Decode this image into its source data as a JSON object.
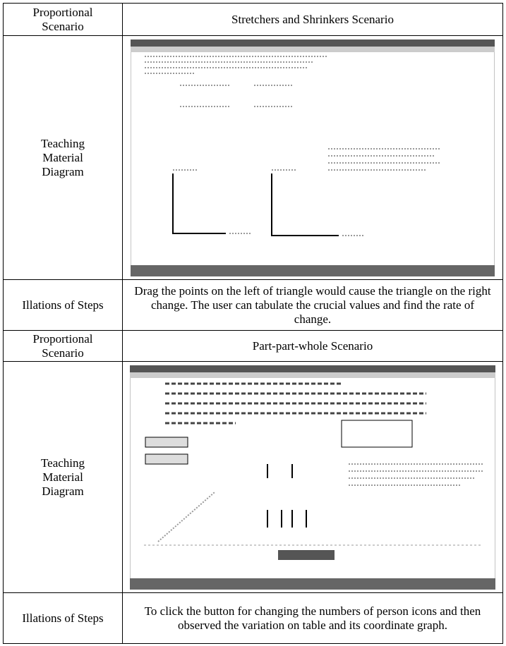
{
  "table": {
    "rows": [
      [
        "Proportional Scenario",
        "Stretchers and Shrinkers Scenario"
      ],
      [
        "Teaching Material Diagram"
      ],
      [
        "Illations of Steps",
        "Drag the points on the left of  triangle  would cause  the triangle on the right change. The user can tabulate the crucial values and  find the rate of change."
      ],
      [
        "Proportional Scenario",
        "Part-part-whole Scenario"
      ],
      [
        "Teaching Material Diagram"
      ],
      [
        "Illations of Steps",
        "To click the button for changing the numbers of person icons and then observed the variation on  table and its coordinate graph."
      ]
    ]
  }
}
